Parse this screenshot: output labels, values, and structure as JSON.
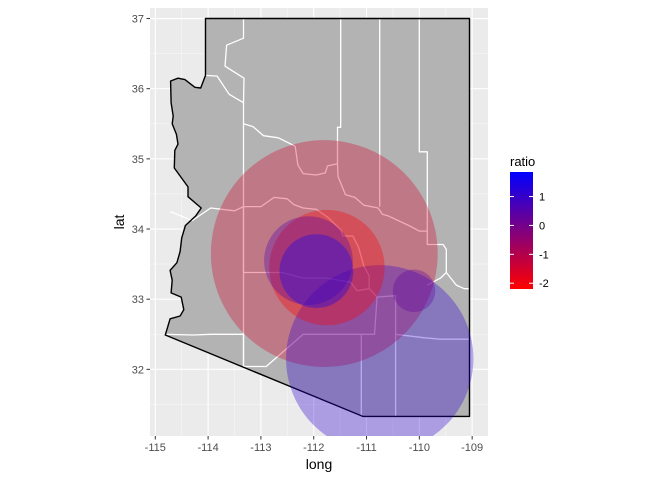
{
  "chart_data": {
    "type": "scatter",
    "xlabel": "long",
    "ylabel": "lat",
    "xlim": [
      -115.1,
      -108.7
    ],
    "ylim": [
      31.05,
      37.15
    ],
    "x_ticks": [
      "-115",
      "-114",
      "-113",
      "-112",
      "-111",
      "-110",
      "-109"
    ],
    "x_tick_values": [
      -115,
      -114,
      -113,
      -112,
      -111,
      -110,
      -109
    ],
    "y_ticks": [
      "32",
      "33",
      "34",
      "35",
      "36",
      "37"
    ],
    "y_tick_values": [
      32,
      33,
      34,
      35,
      36,
      37
    ],
    "grid": true,
    "panel_color": "#ebebeb",
    "state_fill": "#b3b3b3",
    "county_line_color": "#ffffff",
    "legend": {
      "title": "ratio",
      "placement": "right",
      "low_color": "#ff0000",
      "high_color": "#0000ff",
      "range": [
        -2.2,
        1.85
      ],
      "ticks": [
        "1",
        "0",
        "-1",
        "-2"
      ],
      "tick_values": [
        1,
        0,
        -1,
        -2
      ]
    },
    "points": [
      {
        "long": -111.8,
        "lat": 33.65,
        "ratio": -1.5,
        "size": 85
      },
      {
        "long": -110.75,
        "lat": 32.15,
        "ratio": 1.1,
        "size": 58
      },
      {
        "long": -111.75,
        "lat": 33.45,
        "ratio": -2.2,
        "size": 22
      },
      {
        "long": -112.1,
        "lat": 33.55,
        "ratio": 0.6,
        "size": 13
      },
      {
        "long": -111.95,
        "lat": 33.4,
        "ratio": 1.8,
        "size": 9
      },
      {
        "long": -110.1,
        "lat": 33.12,
        "ratio": 0.3,
        "size": 3
      }
    ]
  }
}
